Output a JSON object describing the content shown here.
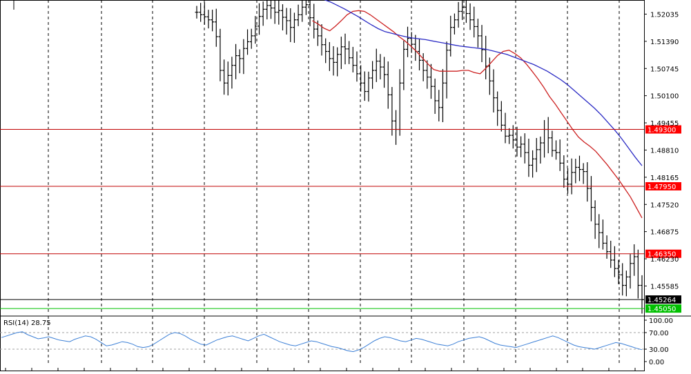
{
  "chart_data": {
    "type": "line",
    "instrument_view": "candlestick-ohlc price chart with moving averages and RSI subpanel",
    "price_panel": {
      "y_ticks": [
        "1.52035",
        "1.51390",
        "1.50745",
        "1.50100",
        "1.49455",
        "1.48810",
        "1.48165",
        "1.47520",
        "1.46875",
        "1.46230",
        "1.45585"
      ],
      "y_tick_values": [
        1.52035,
        1.5139,
        1.50745,
        1.501,
        1.49455,
        1.4881,
        1.48165,
        1.4752,
        1.46875,
        1.4623,
        1.45585
      ],
      "ylim": [
        1.44905,
        1.5237
      ],
      "grid": "vertical-dashed",
      "horizontal_levels": [
        {
          "value": 1.493,
          "label": "1.49300",
          "color": "#c00000",
          "label_bg": "#ff0000"
        },
        {
          "value": 1.4795,
          "label": "1.47950",
          "color": "#c00000",
          "label_bg": "#ff0000"
        },
        {
          "value": 1.4635,
          "label": "1.46350",
          "color": "#c00000",
          "label_bg": "#ff0000"
        },
        {
          "value": 1.45264,
          "label": "1.45264",
          "color": "#000000",
          "label_bg": "#000000"
        },
        {
          "value": 1.4505,
          "label": "1.45050",
          "color": "#00c000",
          "label_bg": "#00c000"
        }
      ],
      "close_series": [
        1.5208,
        1.5202,
        1.5197,
        1.519,
        1.5185,
        1.515,
        1.507,
        1.504,
        1.5058,
        1.5082,
        1.5105,
        1.5098,
        1.5122,
        1.5138,
        1.5152,
        1.5175,
        1.5198,
        1.5215,
        1.5224,
        1.5218,
        1.5208,
        1.5212,
        1.5196,
        1.5188,
        1.5172,
        1.519,
        1.5202,
        1.522,
        1.5226,
        1.5195,
        1.5168,
        1.5152,
        1.5131,
        1.5115,
        1.5098,
        1.5089,
        1.5108,
        1.5126,
        1.5121,
        1.51,
        1.5082,
        1.5062,
        1.504,
        1.502,
        1.5052,
        1.507,
        1.5092,
        1.5078,
        1.506,
        1.5012,
        1.495,
        1.493,
        1.504,
        1.512,
        1.5146,
        1.5132,
        1.5115,
        1.5094,
        1.507,
        1.5054,
        1.5032,
        1.4998,
        1.4982,
        1.504,
        1.5118,
        1.5172,
        1.519,
        1.521,
        1.522,
        1.5205,
        1.519,
        1.5174,
        1.5152,
        1.5119,
        1.508,
        1.5045,
        1.5005,
        1.4975,
        1.494,
        1.4914,
        1.4916,
        1.4905,
        1.4888,
        1.4895,
        1.4875,
        1.4845,
        1.486,
        1.4882,
        1.4898,
        1.493,
        1.491,
        1.488,
        1.4875,
        1.485,
        1.4812,
        1.48,
        1.4828,
        1.484,
        1.4835,
        1.483,
        1.479,
        1.4745,
        1.4705,
        1.4685,
        1.466,
        1.464,
        1.462,
        1.46,
        1.4585,
        1.456,
        1.458,
        1.4612,
        1.4628,
        1.456,
        1.4526
      ],
      "moving_averages": [
        {
          "color": "#cc2020",
          "values": [
            null,
            null,
            null,
            null,
            null,
            null,
            null,
            null,
            null,
            null,
            null,
            null,
            null,
            null,
            null,
            null,
            null,
            null,
            null,
            null,
            1.5188,
            1.518,
            1.517,
            1.5164,
            1.5175,
            1.5188,
            1.5202,
            1.521,
            1.5212,
            1.521,
            1.5202,
            1.5192,
            1.5182,
            1.5172,
            1.5162,
            1.515,
            1.514,
            1.5128,
            1.5115,
            1.51,
            1.5085,
            1.5072,
            1.5068,
            1.5068,
            1.5068,
            1.5068,
            1.507,
            1.507,
            1.5065,
            1.5062,
            1.5075,
            1.509,
            1.5105,
            1.5115,
            1.5118,
            1.511,
            1.51,
            1.5085,
            1.5068,
            1.505,
            1.503,
            1.5008,
            1.499,
            1.497,
            1.495,
            1.493,
            1.4912,
            1.49,
            1.489,
            1.4878,
            1.4862,
            1.4846,
            1.4828,
            1.481,
            1.479,
            1.477,
            1.4745,
            1.472
          ]
        }
      ]
    },
    "rsi_panel": {
      "label": "RSI(14) 28.75",
      "period": 14,
      "last_value": 28.75,
      "y_ticks": [
        "100.00",
        "70.00",
        "30.00",
        "0.00"
      ],
      "y_tick_values": [
        100,
        70,
        30,
        0
      ],
      "levels": [
        70,
        30
      ],
      "ylim": [
        0,
        100
      ],
      "color": "#3b7fd6",
      "values": [
        58,
        62,
        66,
        70,
        72,
        65,
        60,
        55,
        57,
        60,
        56,
        52,
        50,
        48,
        54,
        58,
        62,
        60,
        54,
        46,
        38,
        40,
        44,
        48,
        46,
        42,
        36,
        34,
        36,
        42,
        50,
        58,
        66,
        70,
        68,
        62,
        54,
        48,
        42,
        40,
        46,
        52,
        56,
        60,
        62,
        58,
        54,
        50,
        56,
        62,
        66,
        60,
        54,
        48,
        44,
        40,
        38,
        42,
        46,
        50,
        48,
        44,
        40,
        36,
        34,
        30,
        26,
        24,
        28,
        34,
        42,
        50,
        56,
        60,
        58,
        54,
        50,
        48,
        52,
        56,
        54,
        50,
        46,
        42,
        40,
        38,
        42,
        48,
        52,
        56,
        58,
        60,
        56,
        50,
        44,
        40,
        38,
        36,
        34,
        38,
        42,
        46,
        50,
        54,
        58,
        62,
        58,
        52,
        46,
        40,
        36,
        34,
        32,
        30,
        34,
        38,
        42,
        46,
        44,
        40,
        36,
        32,
        28.75
      ]
    },
    "blue_ma": {
      "color": "#2a2ac4",
      "values": [
        1.5255,
        1.525,
        1.5244,
        1.5238,
        1.5232,
        1.5224,
        1.5216,
        1.5207,
        1.5198,
        1.5188,
        1.5178,
        1.5169,
        1.5162,
        1.5158,
        1.5154,
        1.515,
        1.5147,
        1.5145,
        1.5143,
        1.514,
        1.5137,
        1.5134,
        1.5131,
        1.5128,
        1.5126,
        1.5124,
        1.5122,
        1.512,
        1.5116,
        1.5112,
        1.5108,
        1.5102,
        1.5096,
        1.509,
        1.5084,
        1.5076,
        1.5068,
        1.5058,
        1.5048,
        1.5036,
        1.5022,
        1.5008,
        1.4994,
        1.498,
        1.4964,
        1.4946,
        1.4928,
        1.4908,
        1.4886,
        1.4864,
        1.4844
      ]
    },
    "bar_marker": {
      "label": "1.45264"
    }
  }
}
